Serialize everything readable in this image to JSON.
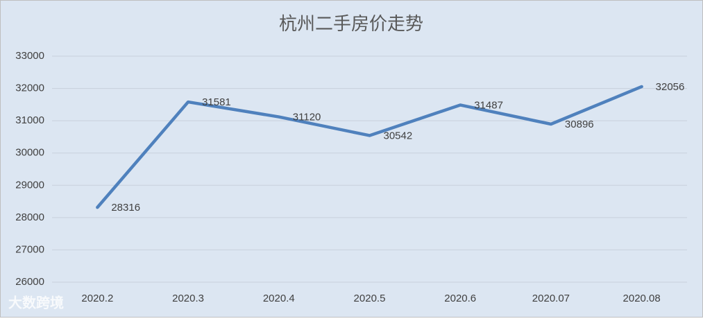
{
  "chart_data": {
    "type": "line",
    "title": "杭州二手房价走势",
    "categories": [
      "2020.2",
      "2020.3",
      "2020.4",
      "2020.5",
      "2020.6",
      "2020.07",
      "2020.08"
    ],
    "series": [
      {
        "name": "杭州二手房价",
        "color": "#4f81bd",
        "values": [
          28316,
          31581,
          31120,
          30542,
          31487,
          30896,
          32056
        ]
      }
    ],
    "ylim": [
      26000,
      33000
    ],
    "yticks": [
      26000,
      27000,
      28000,
      29000,
      30000,
      31000,
      32000,
      33000
    ],
    "grid": true,
    "data_labels": true
  },
  "watermark": "大数跨境"
}
